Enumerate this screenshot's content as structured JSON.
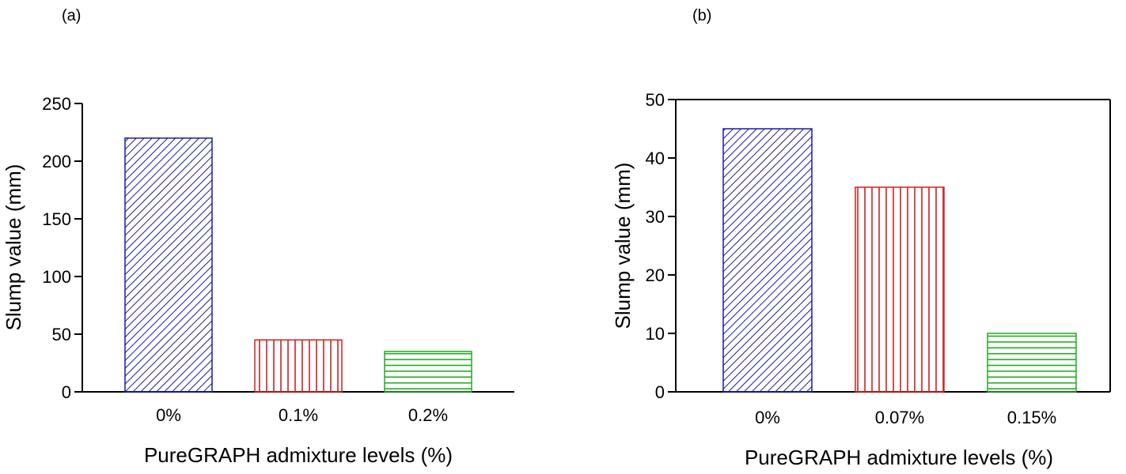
{
  "chart_data": [
    {
      "panel_label": "(a)",
      "type": "bar",
      "title": "",
      "xlabel": "PureGRAPH admixture levels (%)",
      "ylabel": "Slump value (mm)",
      "categories": [
        "0%",
        "0.1%",
        "0.2%"
      ],
      "values": [
        220,
        45,
        35
      ],
      "ylim": [
        0,
        250
      ],
      "yticks": [
        0,
        50,
        100,
        150,
        200,
        250
      ],
      "grid": false,
      "bar_colors": [
        "#1a1aa6",
        "#cc2222",
        "#22aa22"
      ],
      "bar_patterns": [
        "diagonal",
        "vertical",
        "horizontal"
      ]
    },
    {
      "panel_label": "(b)",
      "type": "bar",
      "title": "",
      "xlabel": "PureGRAPH admixture levels (%)",
      "ylabel": "Slump value (mm)",
      "categories": [
        "0%",
        "0.07%",
        "0.15%"
      ],
      "values": [
        45,
        35,
        10
      ],
      "ylim": [
        0,
        50
      ],
      "yticks": [
        0,
        10,
        20,
        30,
        40,
        50
      ],
      "grid": false,
      "bar_colors": [
        "#1a1aa6",
        "#cc2222",
        "#22aa22"
      ],
      "bar_patterns": [
        "diagonal",
        "vertical",
        "horizontal"
      ]
    }
  ]
}
